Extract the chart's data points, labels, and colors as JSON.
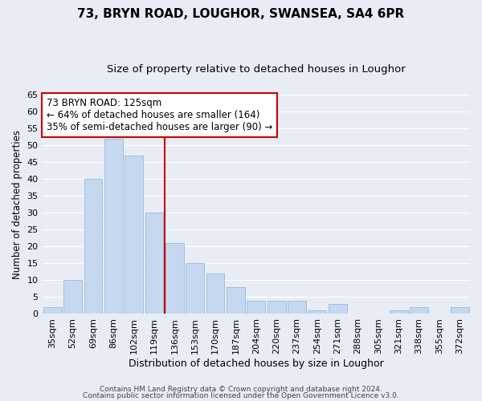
{
  "title": "73, BRYN ROAD, LOUGHOR, SWANSEA, SA4 6PR",
  "subtitle": "Size of property relative to detached houses in Loughor",
  "xlabel": "Distribution of detached houses by size in Loughor",
  "ylabel": "Number of detached properties",
  "categories": [
    "35sqm",
    "52sqm",
    "69sqm",
    "86sqm",
    "102sqm",
    "119sqm",
    "136sqm",
    "153sqm",
    "170sqm",
    "187sqm",
    "204sqm",
    "220sqm",
    "237sqm",
    "254sqm",
    "271sqm",
    "288sqm",
    "305sqm",
    "321sqm",
    "338sqm",
    "355sqm",
    "372sqm"
  ],
  "values": [
    2,
    10,
    40,
    52,
    47,
    30,
    21,
    15,
    12,
    8,
    4,
    4,
    4,
    1,
    3,
    0,
    0,
    1,
    2,
    0,
    2
  ],
  "bar_color": "#c5d8f0",
  "bar_edge_color": "#a0bedd",
  "background_color": "#e8edf5",
  "grid_color": "#ffffff",
  "property_line_x": 5.5,
  "annotation_line1": "73 BRYN ROAD: 125sqm",
  "annotation_line2": "← 64% of detached houses are smaller (164)",
  "annotation_line3": "35% of semi-detached houses are larger (90) →",
  "annotation_box_color": "#ffffff",
  "annotation_box_edge": "#cc0000",
  "vline_color": "#cc0000",
  "ylim": [
    0,
    65
  ],
  "yticks": [
    0,
    5,
    10,
    15,
    20,
    25,
    30,
    35,
    40,
    45,
    50,
    55,
    60,
    65
  ],
  "footer1": "Contains HM Land Registry data © Crown copyright and database right 2024.",
  "footer2": "Contains public sector information licensed under the Open Government Licence v3.0.",
  "title_fontsize": 11,
  "subtitle_fontsize": 9.5,
  "tick_fontsize": 8,
  "ylabel_fontsize": 8.5,
  "xlabel_fontsize": 9,
  "annotation_fontsize": 8.5,
  "footer_fontsize": 6.5
}
